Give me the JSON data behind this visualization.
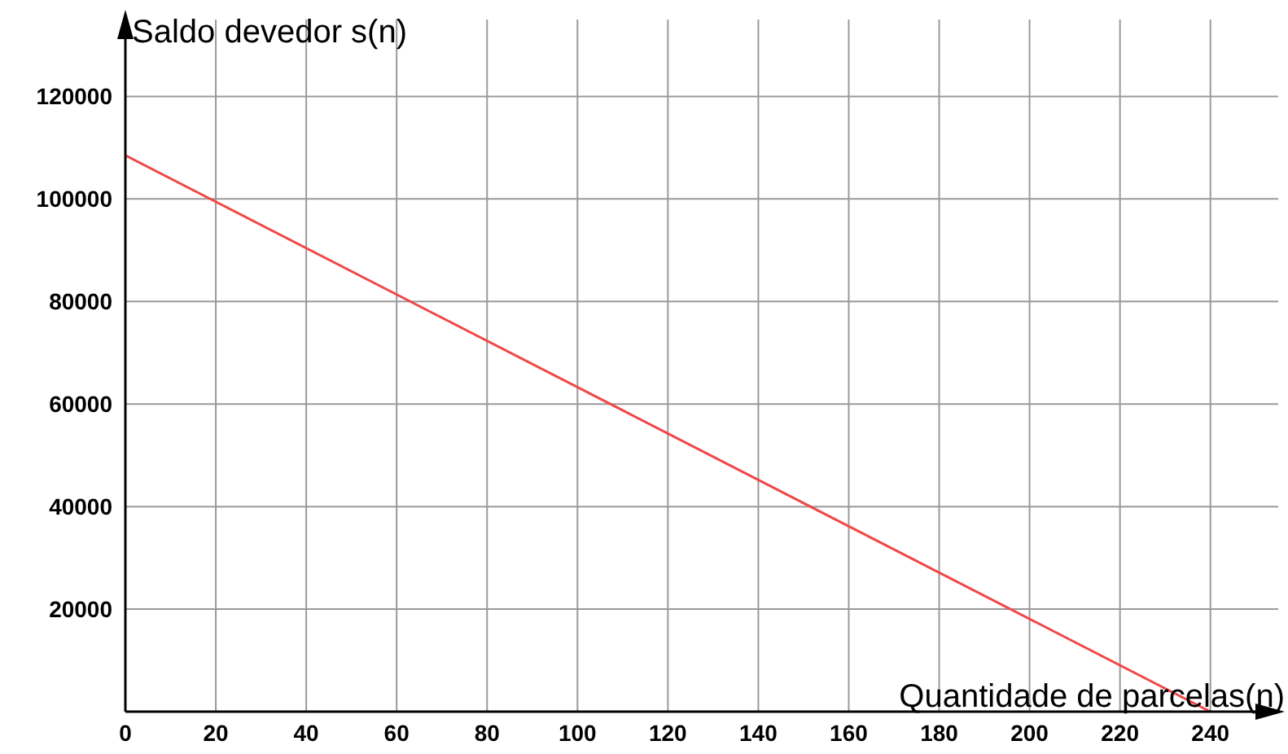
{
  "chart_data": {
    "type": "line",
    "xlabel": "Quantidade de parcelas(n)",
    "ylabel": "Saldo devedor s(n)",
    "x": [
      0,
      240
    ],
    "series": [
      {
        "color": "#f04848",
        "values": [
          108500,
          0
        ]
      }
    ],
    "xlim": [
      0,
      255
    ],
    "ylim": [
      0,
      135000
    ],
    "xticks": [
      0,
      20,
      40,
      60,
      80,
      100,
      120,
      140,
      160,
      180,
      200,
      220,
      240
    ],
    "yticks": [
      20000,
      40000,
      60000,
      80000,
      100000,
      120000
    ],
    "grid": true,
    "marker": "none",
    "line_style": "solid"
  }
}
